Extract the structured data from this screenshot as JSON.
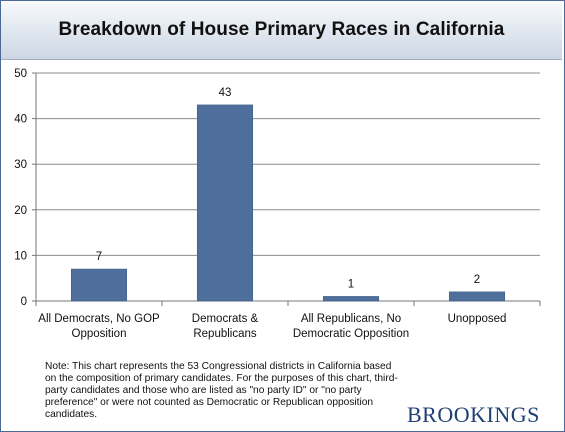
{
  "chart_data": {
    "type": "bar",
    "title": "Breakdown of House Primary Races in California",
    "categories": [
      [
        "All Democrats, No GOP",
        "Opposition"
      ],
      [
        "Democrats &",
        "Republicans"
      ],
      [
        "All Republicans, No",
        "Democratic Opposition"
      ],
      [
        "Unopposed"
      ]
    ],
    "values": [
      7,
      43,
      1,
      2
    ],
    "data_labels": [
      "7",
      "43",
      "1",
      "2"
    ],
    "ylim": [
      0,
      50
    ],
    "yticks": [
      "0",
      "10",
      "20",
      "30",
      "40",
      "50"
    ],
    "xlabel": "",
    "ylabel": "",
    "grid": true,
    "bar_color": "#4e6f9c"
  },
  "note": "Note: This chart represents the 53 Congressional districts in California based on the composition of primary candidates. For the purposes of this chart, third-party candidates and those who are listed as \"no party ID\" or \"no party preference\" or were not counted as Democratic or Republican opposition candidates.",
  "logo": "BROOKINGS"
}
